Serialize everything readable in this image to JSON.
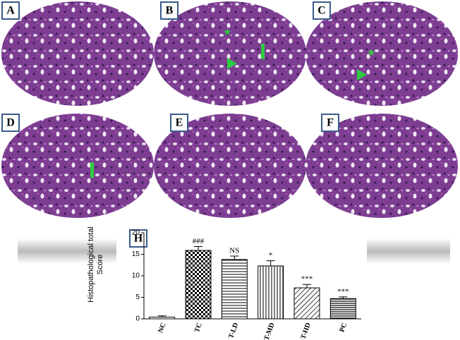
{
  "panels": [
    "A",
    "B",
    "C",
    "D",
    "E",
    "F",
    "H"
  ],
  "chart_data": {
    "type": "bar",
    "y_label": "Histopathological total Score",
    "categories": [
      "NC",
      "TC",
      "T-LD",
      "T-MD",
      "T-HD",
      "PC"
    ],
    "values": [
      0.4,
      15.9,
      13.8,
      12.3,
      7.2,
      4.7
    ],
    "errors": [
      0.3,
      0.9,
      0.8,
      1.2,
      0.8,
      0.4
    ],
    "annotations": [
      null,
      "###",
      "NS",
      "*",
      "***",
      "***"
    ],
    "color": "#000000",
    "ylim": [
      0,
      20
    ],
    "yticks": [
      0,
      5,
      10,
      15,
      20
    ]
  }
}
